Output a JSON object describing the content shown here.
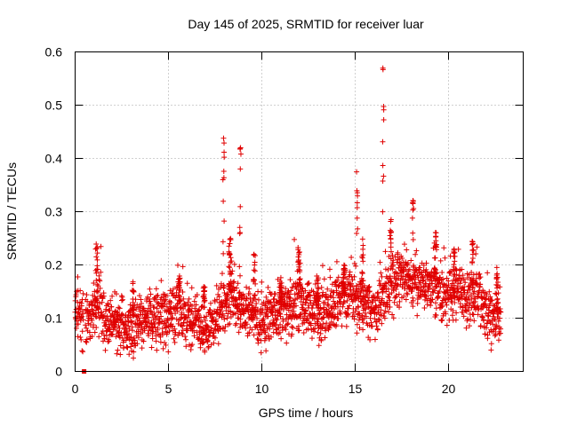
{
  "chart_data": {
    "type": "scatter",
    "title": "Day 145 of 2025, SRMTID for receiver luar",
    "xlabel": "GPS time / hours",
    "ylabel": "SRMTID / TECUs",
    "xlim": [
      0,
      24
    ],
    "ylim": [
      0,
      0.6
    ],
    "x_ticks": [
      0,
      5,
      10,
      15,
      20
    ],
    "y_ticks": [
      0,
      0.1,
      0.2,
      0.3,
      0.4,
      0.5,
      0.6
    ],
    "x_tick_labels": [
      "0",
      "5",
      "10",
      "15",
      "20"
    ],
    "y_tick_labels": [
      "0",
      "0.1",
      "0.2",
      "0.3",
      "0.4",
      "0.5",
      "0.6"
    ],
    "grid": true,
    "marker": "plus",
    "color": "#e00000",
    "sampling_interval_hours": 0.01,
    "series": [
      {
        "name": "SRMTID",
        "baseline": [
          [
            0.0,
            0.12
          ],
          [
            0.3,
            0.1
          ],
          [
            0.6,
            0.09
          ],
          [
            1.0,
            0.11
          ],
          [
            1.3,
            0.13
          ],
          [
            1.6,
            0.1
          ],
          [
            2.0,
            0.09
          ],
          [
            2.5,
            0.08
          ],
          [
            3.0,
            0.08
          ],
          [
            3.5,
            0.09
          ],
          [
            4.0,
            0.1
          ],
          [
            4.5,
            0.1
          ],
          [
            5.0,
            0.1
          ],
          [
            5.5,
            0.11
          ],
          [
            6.0,
            0.1
          ],
          [
            6.5,
            0.09
          ],
          [
            7.0,
            0.08
          ],
          [
            7.5,
            0.09
          ],
          [
            7.9,
            0.12
          ],
          [
            8.3,
            0.14
          ],
          [
            8.8,
            0.12
          ],
          [
            9.2,
            0.11
          ],
          [
            9.6,
            0.11
          ],
          [
            10.0,
            0.09
          ],
          [
            10.5,
            0.1
          ],
          [
            11.0,
            0.11
          ],
          [
            11.5,
            0.12
          ],
          [
            12.0,
            0.13
          ],
          [
            12.5,
            0.11
          ],
          [
            13.0,
            0.1
          ],
          [
            13.5,
            0.11
          ],
          [
            14.0,
            0.13
          ],
          [
            14.5,
            0.14
          ],
          [
            15.0,
            0.14
          ],
          [
            15.5,
            0.12
          ],
          [
            16.0,
            0.11
          ],
          [
            16.5,
            0.14
          ],
          [
            17.0,
            0.17
          ],
          [
            17.5,
            0.18
          ],
          [
            18.0,
            0.17
          ],
          [
            18.5,
            0.16
          ],
          [
            19.0,
            0.17
          ],
          [
            19.5,
            0.15
          ],
          [
            20.0,
            0.14
          ],
          [
            20.5,
            0.15
          ],
          [
            21.0,
            0.13
          ],
          [
            21.5,
            0.15
          ],
          [
            22.0,
            0.11
          ],
          [
            22.5,
            0.1
          ],
          [
            22.8,
            0.1
          ]
        ],
        "bursts": [
          {
            "x": 1.15,
            "peak": 0.24,
            "width": 0.12
          },
          {
            "x": 3.1,
            "peak": 0.17,
            "width": 0.1
          },
          {
            "x": 5.6,
            "peak": 0.18,
            "width": 0.1
          },
          {
            "x": 6.9,
            "peak": 0.16,
            "width": 0.1
          },
          {
            "x": 7.95,
            "peak": 0.46,
            "width": 0.07
          },
          {
            "x": 8.3,
            "peak": 0.25,
            "width": 0.15
          },
          {
            "x": 8.85,
            "peak": 0.42,
            "width": 0.07
          },
          {
            "x": 9.6,
            "peak": 0.22,
            "width": 0.1
          },
          {
            "x": 11.0,
            "peak": 0.17,
            "width": 0.12
          },
          {
            "x": 12.0,
            "peak": 0.24,
            "width": 0.12
          },
          {
            "x": 13.0,
            "peak": 0.18,
            "width": 0.12
          },
          {
            "x": 14.4,
            "peak": 0.2,
            "width": 0.12
          },
          {
            "x": 15.1,
            "peak": 0.38,
            "width": 0.06
          },
          {
            "x": 15.4,
            "peak": 0.25,
            "width": 0.1
          },
          {
            "x": 16.5,
            "peak": 0.58,
            "width": 0.06
          },
          {
            "x": 16.9,
            "peak": 0.29,
            "width": 0.08
          },
          {
            "x": 18.1,
            "peak": 0.35,
            "width": 0.07
          },
          {
            "x": 19.3,
            "peak": 0.27,
            "width": 0.12
          },
          {
            "x": 20.3,
            "peak": 0.23,
            "width": 0.1
          },
          {
            "x": 21.3,
            "peak": 0.25,
            "width": 0.1
          },
          {
            "x": 22.6,
            "peak": 0.2,
            "width": 0.1
          }
        ],
        "gaps": [
          [
            0.45,
            0.55
          ]
        ],
        "isolated_points": [
          [
            0.48,
            0.0
          ]
        ]
      }
    ]
  }
}
